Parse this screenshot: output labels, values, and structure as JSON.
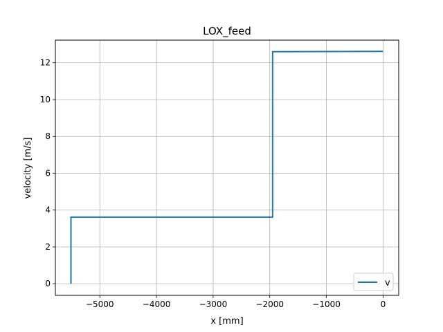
{
  "chart_data": {
    "type": "line",
    "title": "LOX_feed",
    "xlabel": "x [mm]",
    "ylabel": "velocity [m/s]",
    "xlim": [
      -5785,
      276
    ],
    "ylim": [
      -0.63,
      13.23
    ],
    "xticks": [
      -5000,
      -4000,
      -3000,
      -2000,
      -1000,
      0
    ],
    "xtick_labels": [
      "−5000",
      "−4000",
      "−3000",
      "−2000",
      "−1000",
      "0"
    ],
    "yticks": [
      0,
      2,
      4,
      6,
      8,
      10,
      12
    ],
    "ytick_labels": [
      "0",
      "2",
      "4",
      "6",
      "8",
      "10",
      "12"
    ],
    "grid": true,
    "legend_position": "lower-right",
    "series": [
      {
        "name": "v",
        "color": "#1f77b4",
        "x": [
          -5510,
          -5510,
          -1950,
          -1950,
          0
        ],
        "y": [
          0,
          3.62,
          3.62,
          12.6,
          12.62
        ]
      }
    ]
  }
}
